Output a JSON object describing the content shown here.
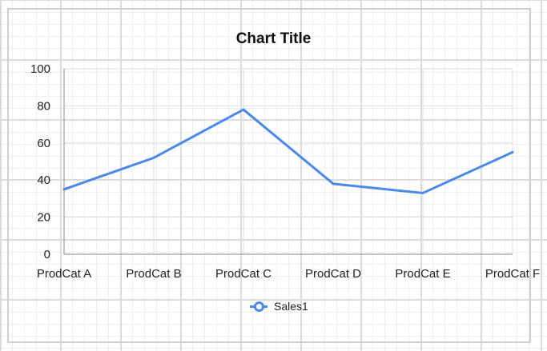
{
  "chart_data": {
    "type": "line",
    "title": "Chart Title",
    "categories": [
      "ProdCat A",
      "ProdCat B",
      "ProdCat C",
      "ProdCat D",
      "ProdCat E",
      "ProdCat F"
    ],
    "series": [
      {
        "name": "Sales1",
        "values": [
          35,
          52,
          78,
          38,
          33,
          55
        ],
        "color": "#4a89e8"
      }
    ],
    "ylim": [
      0,
      100
    ],
    "yticks": [
      "0",
      "20",
      "40",
      "60",
      "80",
      "100"
    ],
    "grid": true,
    "legend": "bottom"
  }
}
